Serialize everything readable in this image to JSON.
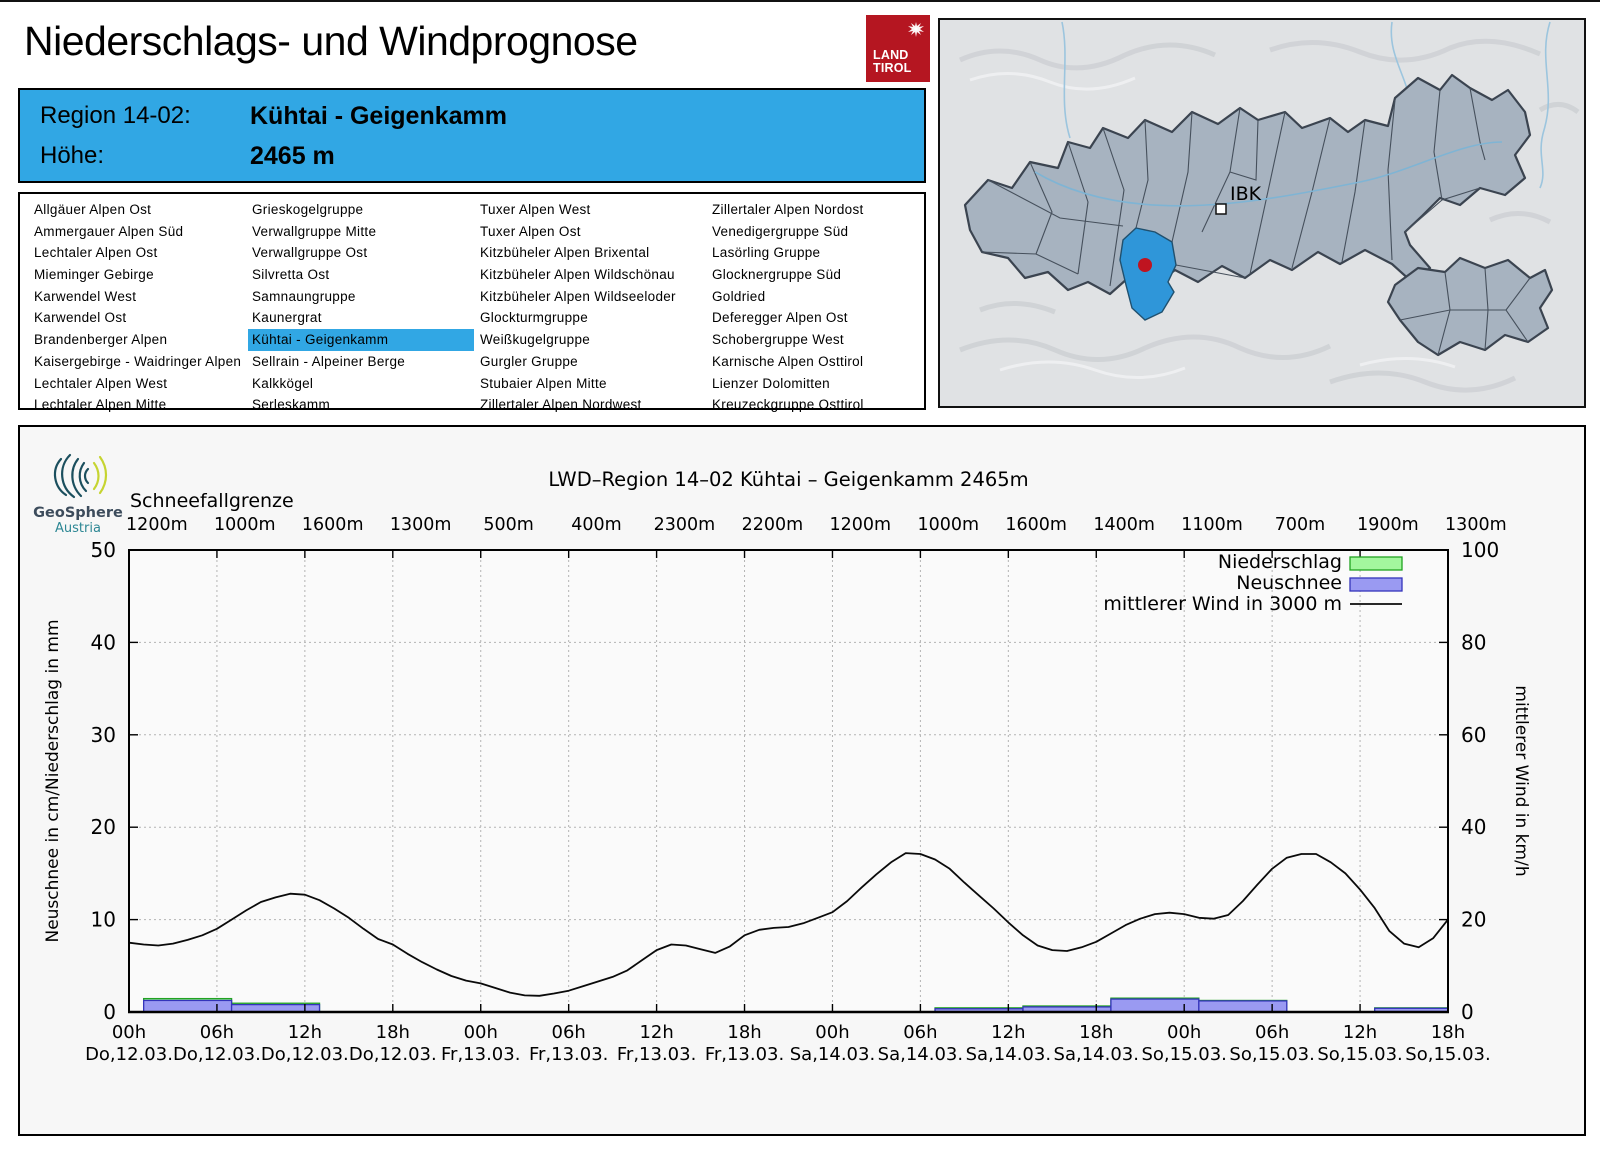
{
  "page": {
    "title": "Niederschlags- und Windprognose"
  },
  "logo": {
    "line1": "LAND",
    "line2": "TIROL",
    "color": "#b51621"
  },
  "region_info": {
    "region_label": "Region 14-02:",
    "region_name": "Kühtai - Geigenkamm",
    "elevation_label": "Höhe:",
    "elevation_value": "2465 m",
    "bg_color": "#31a7e4"
  },
  "region_list": {
    "selected": "Kühtai - Geigenkamm",
    "selected_col": 1,
    "selected_row": 6,
    "columns": [
      [
        "Allgäuer Alpen Ost",
        "Ammergauer Alpen Süd",
        "Lechtaler Alpen Ost",
        "Mieminger Gebirge",
        "Karwendel West",
        "Karwendel Ost",
        "Brandenberger Alpen",
        "Kaisergebirge - Waidringer Alpen",
        "Lechtaler Alpen West",
        "Lechtaler Alpen Mitte"
      ],
      [
        "Grieskogelgruppe",
        "Verwallgruppe Mitte",
        "Verwallgruppe Ost",
        "Silvretta Ost",
        "Samnaungruppe",
        "Kaunergrat",
        "Kühtai - Geigenkamm",
        "Sellrain - Alpeiner Berge",
        "Kalkkögel",
        "Serleskamm"
      ],
      [
        "Tuxer Alpen West",
        "Tuxer Alpen Ost",
        "Kitzbüheler Alpen Brixental",
        "Kitzbüheler Alpen Wildschönau",
        "Kitzbüheler Alpen Wildseeloder",
        "Glockturmgruppe",
        "Weißkugelgruppe",
        "Gurgler Gruppe",
        "Stubaier Alpen Mitte",
        "Zillertaler Alpen Nordwest"
      ],
      [
        "Zillertaler Alpen Nordost",
        "Venedigergruppe Süd",
        "Lasörling Gruppe",
        "Glocknergruppe Süd",
        "Goldried",
        "Deferegger Alpen Ost",
        "Schobergruppe West",
        "Karnische Alpen Osttirol",
        "Lienzer Dolomitten",
        "Kreuzeckgruppe Osttirol"
      ]
    ]
  },
  "map": {
    "ibk_label": "IBK",
    "colors": {
      "background": "#e0e2e4",
      "region_fill": "#a7b3c0",
      "region_border": "#3b4450",
      "highlight_fill": "#2f96d9",
      "marker_dot": "#bf1420",
      "river": "#9cc5de"
    }
  },
  "chart_source": {
    "brand": "GeoSphere",
    "brand_sub": "Austria"
  },
  "chart_data": {
    "type": "bar",
    "subtype": "bars + wind line combo",
    "title": "LWD–Region 14–02 Kühtai – Geigenkamm 2465m",
    "schneefallgrenze_label": "Schneefallgrenze",
    "schneefallgrenze_values": [
      "1200m",
      "1000m",
      "1600m",
      "1300m",
      "500m",
      "400m",
      "2300m",
      "2200m",
      "1200m",
      "1000m",
      "1600m",
      "1400m",
      "1100m",
      "700m",
      "1900m",
      "1300m"
    ],
    "x_hours_range": [
      0,
      90
    ],
    "x_ticks": [
      {
        "time": "00h",
        "date": "Do,12.03."
      },
      {
        "time": "06h",
        "date": "Do,12.03."
      },
      {
        "time": "12h",
        "date": "Do,12.03."
      },
      {
        "time": "18h",
        "date": "Do,12.03."
      },
      {
        "time": "00h",
        "date": "Fr,13.03."
      },
      {
        "time": "06h",
        "date": "Fr,13.03."
      },
      {
        "time": "12h",
        "date": "Fr,13.03."
      },
      {
        "time": "18h",
        "date": "Fr,13.03."
      },
      {
        "time": "00h",
        "date": "Sa,14.03."
      },
      {
        "time": "06h",
        "date": "Sa,14.03."
      },
      {
        "time": "12h",
        "date": "Sa,14.03."
      },
      {
        "time": "18h",
        "date": "Sa,14.03."
      },
      {
        "time": "00h",
        "date": "So,15.03."
      },
      {
        "time": "06h",
        "date": "So,15.03."
      },
      {
        "time": "12h",
        "date": "So,15.03."
      },
      {
        "time": "18h",
        "date": "So,15.03."
      }
    ],
    "ylabel_left": "Neuschnee in cm/Niederschlag in mm",
    "ylabel_right": "mittlerer Wind in km/h",
    "ylim_left": [
      0,
      50
    ],
    "ylim_right": [
      0,
      100
    ],
    "yticks_left": [
      0,
      10,
      20,
      30,
      40,
      50
    ],
    "yticks_right": [
      0,
      20,
      40,
      60,
      80,
      100
    ],
    "grid": true,
    "legend_position": "top-right",
    "series": [
      {
        "name": "Niederschlag",
        "type": "bar",
        "unit": "mm",
        "axis": "left",
        "fill": "#a3f79e",
        "border": "#21a321",
        "bars": [
          [
            1,
            7,
            1.45
          ],
          [
            7,
            13,
            0.95
          ],
          [
            55,
            61,
            0.45
          ],
          [
            61,
            67,
            0.65
          ],
          [
            67,
            73,
            1.5
          ],
          [
            73,
            79,
            1.25
          ],
          [
            85,
            90,
            0.45
          ]
        ]
      },
      {
        "name": "Neuschnee",
        "type": "bar",
        "unit": "cm",
        "axis": "left",
        "fill": "#9a9af2",
        "border": "#3434bb",
        "bars": [
          [
            1,
            7,
            1.25
          ],
          [
            7,
            13,
            0.8
          ],
          [
            55,
            61,
            0.35
          ],
          [
            61,
            67,
            0.55
          ],
          [
            67,
            73,
            1.4
          ],
          [
            73,
            79,
            1.2
          ],
          [
            85,
            90,
            0.4
          ]
        ]
      },
      {
        "name": "mittlerer Wind in 3000 m",
        "type": "line",
        "unit": "km/h",
        "axis": "right",
        "color": "#0a0a0a",
        "points": [
          [
            0,
            15
          ],
          [
            1,
            14.6
          ],
          [
            2,
            14.4
          ],
          [
            3,
            14.8
          ],
          [
            4,
            15.6
          ],
          [
            5,
            16.6
          ],
          [
            6,
            18
          ],
          [
            7,
            20
          ],
          [
            8,
            22
          ],
          [
            9,
            23.8
          ],
          [
            10,
            24.8
          ],
          [
            11,
            25.6
          ],
          [
            12,
            25.4
          ],
          [
            13,
            24.2
          ],
          [
            14,
            22.4
          ],
          [
            15,
            20.4
          ],
          [
            16,
            18
          ],
          [
            17,
            15.8
          ],
          [
            18,
            14.6
          ],
          [
            19,
            12.6
          ],
          [
            20,
            10.8
          ],
          [
            21,
            9.2
          ],
          [
            22,
            7.8
          ],
          [
            23,
            6.8
          ],
          [
            24,
            6.2
          ],
          [
            25,
            5.2
          ],
          [
            26,
            4.2
          ],
          [
            27,
            3.6
          ],
          [
            28,
            3.5
          ],
          [
            29,
            4
          ],
          [
            30,
            4.6
          ],
          [
            31,
            5.6
          ],
          [
            32,
            6.6
          ],
          [
            33,
            7.6
          ],
          [
            34,
            9
          ],
          [
            35,
            11.2
          ],
          [
            36,
            13.4
          ],
          [
            37,
            14.6
          ],
          [
            38,
            14.4
          ],
          [
            39,
            13.6
          ],
          [
            40,
            12.8
          ],
          [
            41,
            14.2
          ],
          [
            42,
            16.6
          ],
          [
            43,
            17.8
          ],
          [
            44,
            18.2
          ],
          [
            45,
            18.4
          ],
          [
            46,
            19.2
          ],
          [
            47,
            20.4
          ],
          [
            48,
            21.6
          ],
          [
            49,
            24
          ],
          [
            50,
            27
          ],
          [
            51,
            29.8
          ],
          [
            52,
            32.4
          ],
          [
            53,
            34.4
          ],
          [
            54,
            34.2
          ],
          [
            55,
            33
          ],
          [
            56,
            31
          ],
          [
            57,
            28
          ],
          [
            58,
            25.2
          ],
          [
            59,
            22.4
          ],
          [
            60,
            19.4
          ],
          [
            61,
            16.6
          ],
          [
            62,
            14.4
          ],
          [
            63,
            13.4
          ],
          [
            64,
            13.2
          ],
          [
            65,
            14
          ],
          [
            66,
            15.2
          ],
          [
            67,
            17
          ],
          [
            68,
            18.8
          ],
          [
            69,
            20.2
          ],
          [
            70,
            21.2
          ],
          [
            71,
            21.5
          ],
          [
            72,
            21.2
          ],
          [
            73,
            20.4
          ],
          [
            74,
            20.2
          ],
          [
            75,
            21
          ],
          [
            76,
            24
          ],
          [
            77,
            27.6
          ],
          [
            78,
            31
          ],
          [
            79,
            33.4
          ],
          [
            80,
            34.2
          ],
          [
            81,
            34.2
          ],
          [
            82,
            32.4
          ],
          [
            83,
            30
          ],
          [
            84,
            26.5
          ],
          [
            85,
            22.5
          ],
          [
            86,
            17.5
          ],
          [
            87,
            14.8
          ],
          [
            88,
            14
          ],
          [
            89,
            16
          ],
          [
            90,
            20
          ]
        ]
      }
    ]
  }
}
